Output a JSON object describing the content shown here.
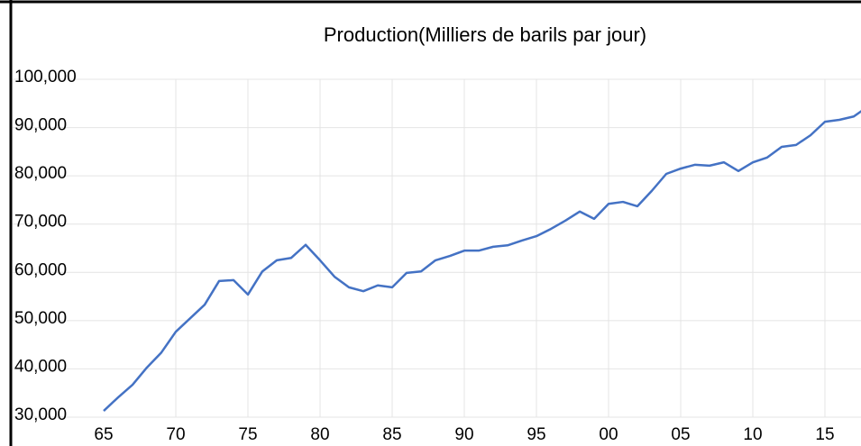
{
  "chart_data": {
    "type": "line",
    "title": "Production(Milliers de barils par jour)",
    "categories": [
      "65",
      null,
      null,
      null,
      null,
      "70",
      null,
      null,
      null,
      null,
      "75",
      null,
      null,
      null,
      null,
      "80",
      null,
      null,
      null,
      null,
      "85",
      null,
      null,
      null,
      null,
      "90",
      null,
      null,
      null,
      null,
      "95",
      null,
      null,
      null,
      null,
      "00",
      null,
      null,
      null,
      null,
      "05",
      null,
      null,
      null,
      null,
      "10",
      null,
      null,
      null,
      null,
      "15",
      null,
      null,
      null
    ],
    "series": [
      {
        "color": "#4472c4",
        "values": [
          31300,
          34100,
          36700,
          40300,
          43400,
          47700,
          50500,
          53300,
          58200,
          58400,
          55400,
          60200,
          62500,
          63000,
          65700,
          62500,
          59100,
          56900,
          56100,
          57300,
          56900,
          59900,
          60200,
          62500,
          63400,
          64500,
          64500,
          65300,
          65600,
          66600,
          67500,
          69000,
          70700,
          72600,
          71100,
          74200,
          74600,
          73700,
          76900,
          80400,
          81500,
          82300,
          82100,
          82800,
          81000,
          82800,
          83800,
          86000,
          86400,
          88400,
          91200,
          91600,
          92300,
          94400
        ]
      }
    ],
    "ylim": [
      30000,
      100000
    ],
    "yticks": [
      {
        "value": 30000,
        "label": "30,000"
      },
      {
        "value": 40000,
        "label": "40,000"
      },
      {
        "value": 50000,
        "label": "50,000"
      },
      {
        "value": 60000,
        "label": "60,000"
      },
      {
        "value": 70000,
        "label": "70,000"
      },
      {
        "value": 80000,
        "label": "80,000"
      },
      {
        "value": 90000,
        "label": "90,000"
      },
      {
        "value": 100000,
        "label": "100,000"
      }
    ],
    "grid": true
  }
}
